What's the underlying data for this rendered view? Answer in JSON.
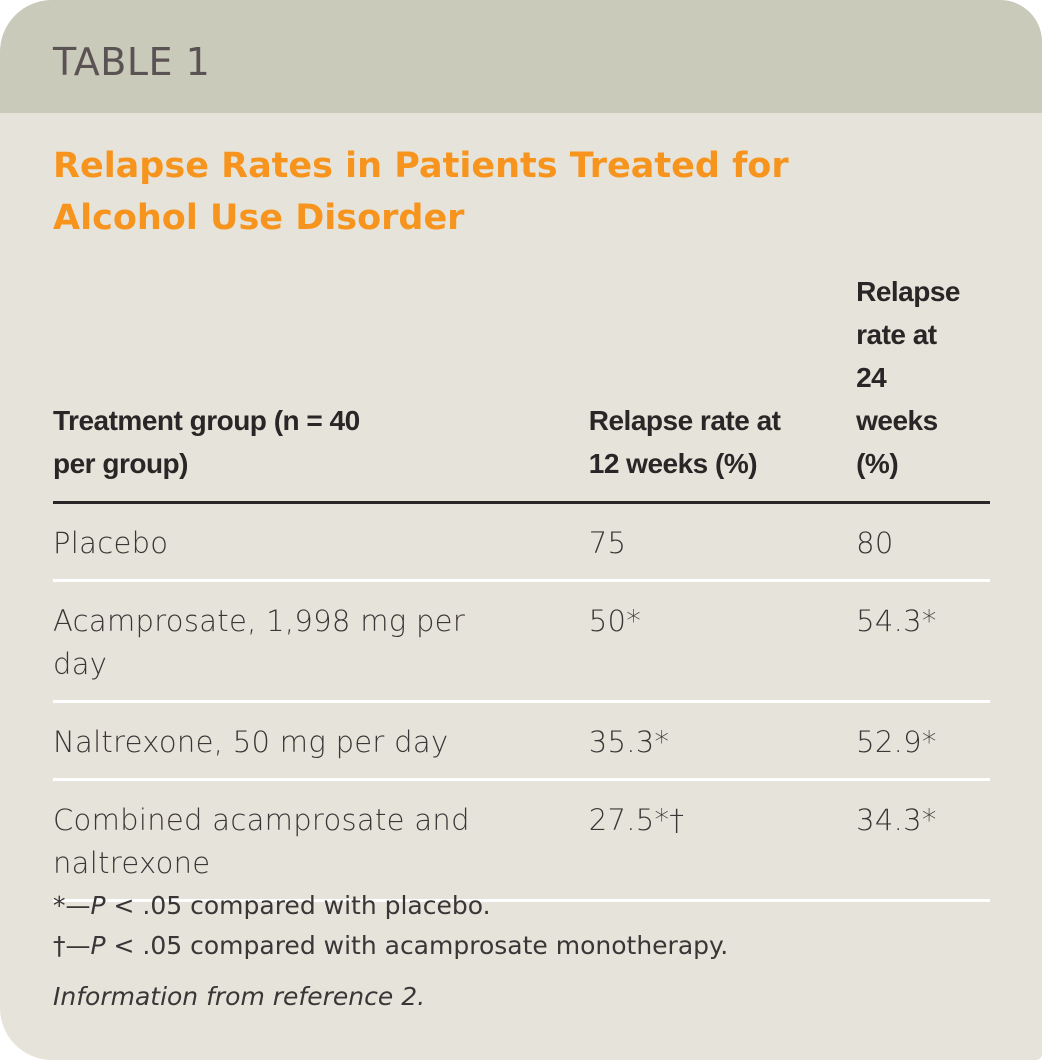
{
  "label": "TABLE 1",
  "title": "Relapse Rates in Patients Treated for Alcohol Use Disorder",
  "colors": {
    "band": "#cacabb",
    "background": "#e6e3da",
    "title": "#f7941d",
    "label": "#5a5253"
  },
  "columns": [
    "Treatment group (n = 40 per group)",
    "Relapse rate at 12 weeks (%)",
    "Relapse rate at 24 weeks (%)"
  ],
  "rows": [
    [
      "Placebo",
      "75",
      "80"
    ],
    [
      "Acamprosate, 1,998 mg per day",
      "50*",
      "54.3*"
    ],
    [
      "Naltrexone, 50 mg per day",
      "35.3*",
      "52.9*"
    ],
    [
      "Combined acamprosate and naltrexone",
      "27.5*†",
      "34.3*"
    ]
  ],
  "footnotes": [
    {
      "symbol": "*—",
      "p": "P",
      "text": " < .05 compared with placebo."
    },
    {
      "symbol": "†—",
      "p": "P",
      "text": " < .05 compared with acamprosate monotherapy."
    }
  ],
  "source": "Information from reference 2."
}
